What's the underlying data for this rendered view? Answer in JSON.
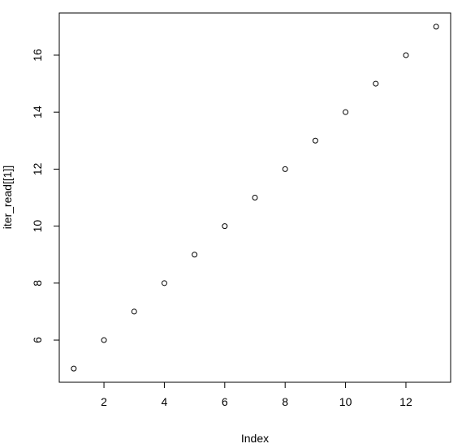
{
  "chart_data": {
    "type": "scatter",
    "x_label": "Index",
    "y_label": "iter_read[[1]]",
    "x": [
      1,
      2,
      3,
      4,
      5,
      6,
      7,
      8,
      9,
      10,
      11,
      12,
      13
    ],
    "values": [
      5,
      6,
      7,
      8,
      9,
      10,
      11,
      12,
      13,
      14,
      15,
      16,
      17
    ],
    "color": "#000000",
    "xlim": [
      0.52,
      13.48
    ],
    "xticks": [
      2,
      4,
      6,
      8,
      10,
      12
    ],
    "ylim": [
      4.52,
      17.48
    ],
    "yticks": [
      6,
      8,
      10,
      12,
      14,
      16
    ]
  }
}
